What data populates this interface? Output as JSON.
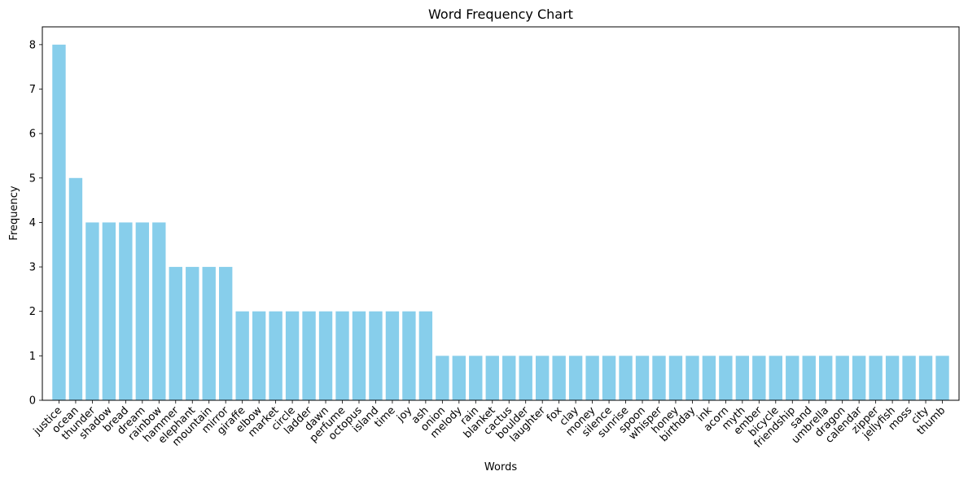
{
  "chart_data": {
    "type": "bar",
    "title": "Word Frequency Chart",
    "xlabel": "Words",
    "ylabel": "Frequency",
    "ylim": [
      0,
      8.4
    ],
    "yticks": [
      0,
      1,
      2,
      3,
      4,
      5,
      6,
      7,
      8
    ],
    "bar_color": "#87ceeb",
    "x_tick_rotation_deg": 45,
    "grid": false,
    "categories": [
      "justice",
      "ocean",
      "thunder",
      "shadow",
      "bread",
      "dream",
      "rainbow",
      "hammer",
      "elephant",
      "mountain",
      "mirror",
      "giraffe",
      "elbow",
      "market",
      "circle",
      "ladder",
      "dawn",
      "perfume",
      "octopus",
      "island",
      "time",
      "joy",
      "ash",
      "onion",
      "melody",
      "rain",
      "blanket",
      "cactus",
      "boulder",
      "laughter",
      "fox",
      "clay",
      "money",
      "silence",
      "sunrise",
      "spoon",
      "whisper",
      "honey",
      "birthday",
      "ink",
      "acorn",
      "myth",
      "ember",
      "bicycle",
      "friendship",
      "sand",
      "umbrella",
      "dragon",
      "calendar",
      "zipper",
      "jellyfish",
      "moss",
      "city",
      "thumb"
    ],
    "values": [
      8,
      5,
      4,
      4,
      4,
      4,
      4,
      3,
      3,
      3,
      3,
      2,
      2,
      2,
      2,
      2,
      2,
      2,
      2,
      2,
      2,
      2,
      2,
      1,
      1,
      1,
      1,
      1,
      1,
      1,
      1,
      1,
      1,
      1,
      1,
      1,
      1,
      1,
      1,
      1,
      1,
      1,
      1,
      1,
      1,
      1,
      1,
      1,
      1,
      1,
      1,
      1,
      1,
      1
    ]
  }
}
